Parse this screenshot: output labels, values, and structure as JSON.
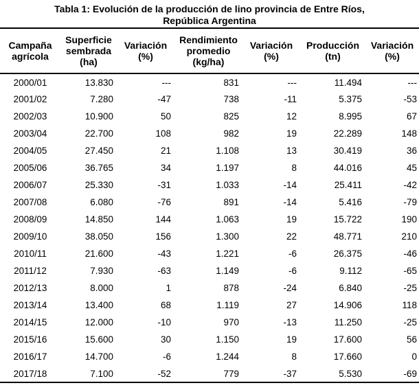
{
  "title": {
    "line1": "Tabla 1: Evolución de la producción de lino provincia de Entre Ríos,",
    "line2": "República Argentina"
  },
  "table": {
    "columns": [
      {
        "label": "Campaña\nagrícola"
      },
      {
        "label": "Superficie\nsembrada\n(ha)"
      },
      {
        "label": "Variación\n(%)"
      },
      {
        "label": "Rendimiento\npromedio\n(kg/ha)"
      },
      {
        "label": "Variación\n(%)"
      },
      {
        "label": "Producción\n(tn)"
      },
      {
        "label": "Variación\n(%)"
      }
    ],
    "rows": [
      [
        "2000/01",
        "13.830",
        "---",
        "831",
        "---",
        "11.494",
        "---"
      ],
      [
        "2001/02",
        "7.280",
        "-47",
        "738",
        "-11",
        "5.375",
        "-53"
      ],
      [
        "2002/03",
        "10.900",
        "50",
        "825",
        "12",
        "8.995",
        "67"
      ],
      [
        "2003/04",
        "22.700",
        "108",
        "982",
        "19",
        "22.289",
        "148"
      ],
      [
        "2004/05",
        "27.450",
        "21",
        "1.108",
        "13",
        "30.419",
        "36"
      ],
      [
        "2005/06",
        "36.765",
        "34",
        "1.197",
        "8",
        "44.016",
        "45"
      ],
      [
        "2006/07",
        "25.330",
        "-31",
        "1.033",
        "-14",
        "25.411",
        "-42"
      ],
      [
        "2007/08",
        "6.080",
        "-76",
        "891",
        "-14",
        "5.416",
        "-79"
      ],
      [
        "2008/09",
        "14.850",
        "144",
        "1.063",
        "19",
        "15.722",
        "190"
      ],
      [
        "2009/10",
        "38.050",
        "156",
        "1.300",
        "22",
        "48.771",
        "210"
      ],
      [
        "2010/11",
        "21.600",
        "-43",
        "1.221",
        "-6",
        "26.375",
        "-46"
      ],
      [
        "2011/12",
        "7.930",
        "-63",
        "1.149",
        "-6",
        "9.112",
        "-65"
      ],
      [
        "2012/13",
        "8.000",
        "1",
        "878",
        "-24",
        "6.840",
        "-25"
      ],
      [
        "2013/14",
        "13.400",
        "68",
        "1.119",
        "27",
        "14.906",
        "118"
      ],
      [
        "2014/15",
        "12.000",
        "-10",
        "970",
        "-13",
        "11.250",
        "-25"
      ],
      [
        "2015/16",
        "15.600",
        "30",
        "1.150",
        "19",
        "17.600",
        "56"
      ],
      [
        "2016/17",
        "14.700",
        "-6",
        "1.244",
        "8",
        "17.660",
        "0"
      ],
      [
        "2017/18",
        "7.100",
        "-52",
        "779",
        "-37",
        "5.530",
        "-69"
      ]
    ]
  },
  "colors": {
    "text": "#000000",
    "background": "#ffffff",
    "border": "#000000"
  }
}
